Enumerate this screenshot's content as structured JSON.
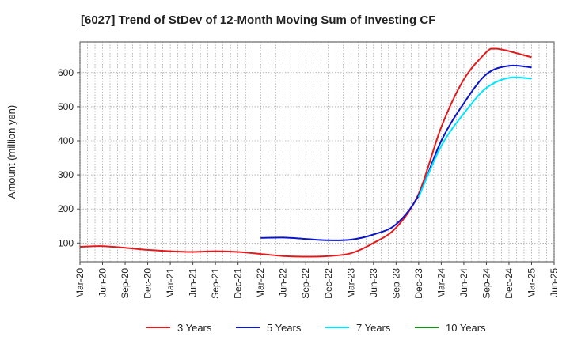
{
  "chart_data": {
    "type": "line",
    "title": "[6027]  Trend of StDev of 12-Month Moving Sum of Investing CF",
    "ylabel": "Amount (million yen)",
    "xlabel": "",
    "x_ticks": [
      "Mar-20",
      "Jun-20",
      "Sep-20",
      "Dec-20",
      "Mar-21",
      "Jun-21",
      "Sep-21",
      "Dec-21",
      "Mar-22",
      "Jun-22",
      "Sep-22",
      "Dec-22",
      "Mar-23",
      "Jun-23",
      "Sep-23",
      "Dec-23",
      "Mar-24",
      "Jun-24",
      "Sep-24",
      "Dec-24",
      "Mar-25",
      "Jun-25"
    ],
    "y_ticks": [
      100,
      200,
      300,
      400,
      500,
      600
    ],
    "ylim": [
      45,
      690
    ],
    "grid": true,
    "legend_position": "bottom",
    "series": [
      {
        "name": "3 Years",
        "color": "#e31a1c",
        "points": [
          [
            "Mar-20",
            89
          ],
          [
            "Jun-20",
            91
          ],
          [
            "Sep-20",
            86
          ],
          [
            "Dec-20",
            80
          ],
          [
            "Mar-21",
            76
          ],
          [
            "Jun-21",
            74
          ],
          [
            "Sep-21",
            76
          ],
          [
            "Dec-21",
            74
          ],
          [
            "Mar-22",
            68
          ],
          [
            "Jun-22",
            62
          ],
          [
            "Sep-22",
            60
          ],
          [
            "Dec-22",
            62
          ],
          [
            "Mar-23",
            70
          ],
          [
            "Jun-23",
            100
          ],
          [
            "Sep-23",
            145
          ],
          [
            "Dec-23",
            245
          ],
          [
            "Mar-24",
            440
          ],
          [
            "Jun-24",
            580
          ],
          [
            "Sep-24",
            660
          ],
          [
            "Oct-24",
            670
          ],
          [
            "Nov-24",
            668
          ],
          [
            "Dec-24",
            663
          ],
          [
            "Mar-25",
            645
          ]
        ]
      },
      {
        "name": "5 Years",
        "color": "#0a14c8",
        "points": [
          [
            "Mar-22",
            115
          ],
          [
            "Jun-22",
            116
          ],
          [
            "Sep-22",
            112
          ],
          [
            "Dec-22",
            108
          ],
          [
            "Mar-23",
            110
          ],
          [
            "Jun-23",
            125
          ],
          [
            "Sep-23",
            155
          ],
          [
            "Dec-23",
            240
          ],
          [
            "Mar-24",
            400
          ],
          [
            "Jun-24",
            510
          ],
          [
            "Sep-24",
            595
          ],
          [
            "Dec-24",
            620
          ],
          [
            "Mar-25",
            615
          ]
        ]
      },
      {
        "name": "7 Years",
        "color": "#00e5ff",
        "points": [
          [
            "Dec-23",
            235
          ],
          [
            "Mar-24",
            385
          ],
          [
            "Jun-24",
            480
          ],
          [
            "Sep-24",
            555
          ],
          [
            "Dec-24",
            585
          ],
          [
            "Mar-25",
            582
          ]
        ]
      },
      {
        "name": "10 Years",
        "color": "#1a8c1a",
        "points": []
      }
    ]
  }
}
